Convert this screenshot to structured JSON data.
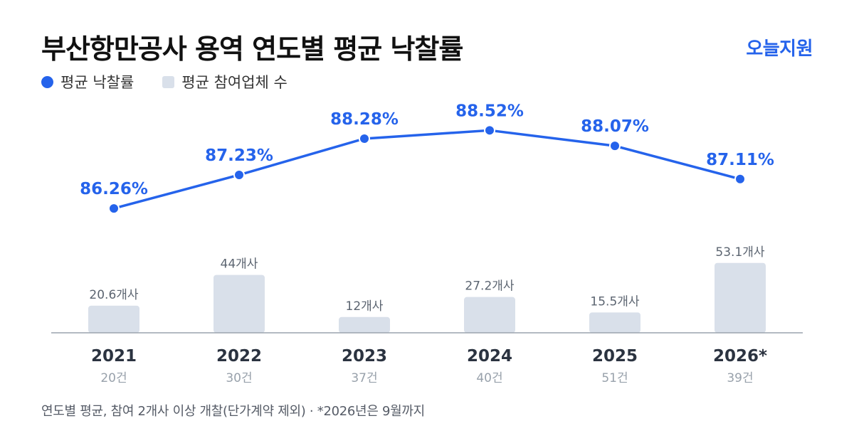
{
  "header": {
    "title": "부산항만공사 용역 연도별 평균 낙찰률",
    "brand": "오늘지원"
  },
  "legend": {
    "rate_label": "평균 낙찰률",
    "participants_label": "평균 참여업체 수"
  },
  "footnote": "연도별 평균, 참여 2개사 이상 개찰(단가계약 제외) · *2026년은 9월까지",
  "colors": {
    "accent": "#2563eb",
    "bar": "#d9e0ea",
    "axis": "#9aa3ad",
    "year_text": "#2b3340",
    "count_text": "#98a1ab",
    "bar_label": "#5b6470"
  },
  "chart_data": {
    "type": "bar+line",
    "categories": [
      "2021",
      "2022",
      "2023",
      "2024",
      "2025",
      "2026*"
    ],
    "case_counts": [
      "20건",
      "30건",
      "37건",
      "40건",
      "51건",
      "39건"
    ],
    "series": [
      {
        "name": "평균 낙찰률",
        "type": "line",
        "values": [
          86.26,
          87.23,
          88.28,
          88.52,
          88.07,
          87.11
        ],
        "labels": [
          "86.26%",
          "87.23%",
          "88.28%",
          "88.52%",
          "88.07%",
          "87.11%"
        ]
      },
      {
        "name": "평균 참여업체 수",
        "type": "bar",
        "values": [
          20.6,
          44,
          12,
          27.2,
          15.5,
          53.1
        ],
        "labels": [
          "20.6개사",
          "44개사",
          "12개사",
          "27.2개사",
          "15.5개사",
          "53.1개사"
        ]
      }
    ],
    "line_range": [
      85.5,
      89.0
    ],
    "bar_range": [
      0,
      60
    ],
    "grid": false,
    "legend_position": "top-left"
  }
}
